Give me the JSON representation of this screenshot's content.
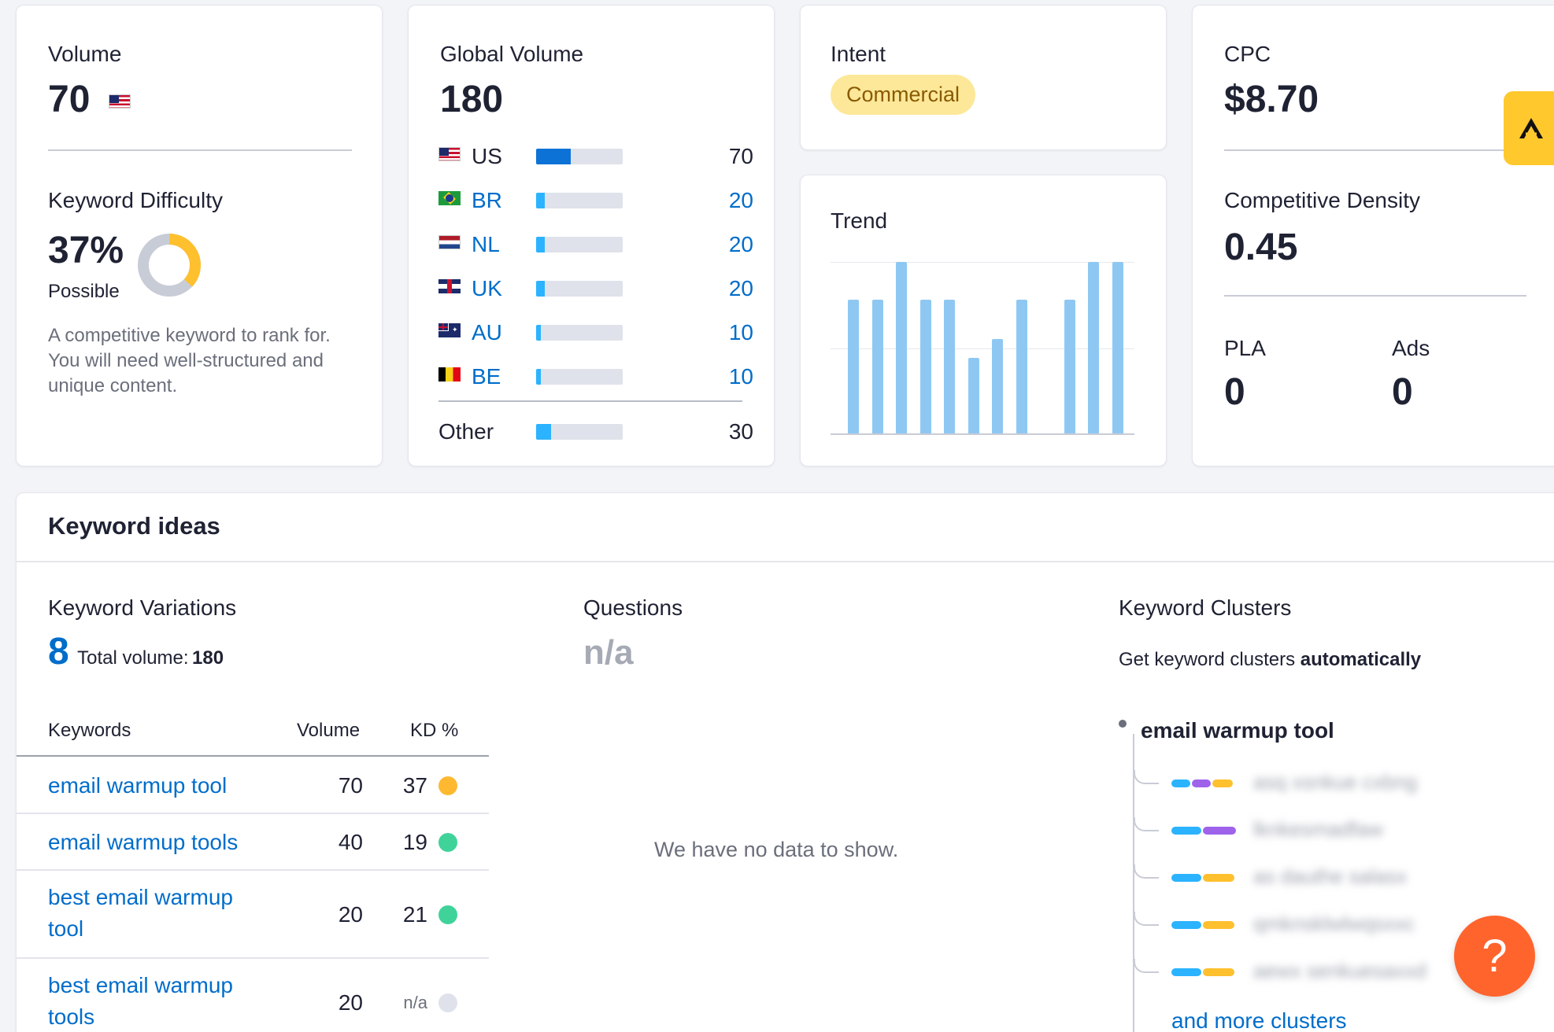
{
  "volume": {
    "label": "Volume",
    "value": "70",
    "kd_label": "Keyword Difficulty",
    "kd_value": "37%",
    "kd_percent": 37,
    "kd_rating": "Possible",
    "kd_description": "A competitive keyword to rank for. You will need well-structured and unique content."
  },
  "global": {
    "label": "Global Volume",
    "value": "180",
    "rows": [
      {
        "code": "US",
        "flag": "flag-us",
        "value": "70",
        "fill": 0.4,
        "link": false,
        "dark": true
      },
      {
        "code": "BR",
        "flag": "flag-br",
        "value": "20",
        "fill": 0.1,
        "link": true
      },
      {
        "code": "NL",
        "flag": "flag-nl",
        "value": "20",
        "fill": 0.1,
        "link": true
      },
      {
        "code": "UK",
        "flag": "flag-uk",
        "value": "20",
        "fill": 0.1,
        "link": true
      },
      {
        "code": "AU",
        "flag": "flag-au",
        "value": "10",
        "fill": 0.05,
        "link": true
      },
      {
        "code": "BE",
        "flag": "flag-be",
        "value": "10",
        "fill": 0.05,
        "link": true
      }
    ],
    "other": {
      "code": "Other",
      "value": "30",
      "fill": 0.17
    }
  },
  "intent": {
    "label": "Intent",
    "value": "Commercial"
  },
  "trend": {
    "label": "Trend",
    "values": [
      0.78,
      0.78,
      1.0,
      0.78,
      0.78,
      0.44,
      0.55,
      0.78,
      0.0,
      0.78,
      1.0,
      1.0
    ]
  },
  "cpc": {
    "label": "CPC",
    "value": "$8.70",
    "cd_label": "Competitive Density",
    "cd_value": "0.45",
    "pla_label": "PLA",
    "pla_value": "0",
    "ads_label": "Ads",
    "ads_value": "0"
  },
  "ideas": {
    "title": "Keyword ideas",
    "variations": {
      "label": "Keyword Variations",
      "count": "8",
      "total_label": "Total volume:",
      "total_value": "180",
      "col_keywords": "Keywords",
      "col_volume": "Volume",
      "col_kd": "KD %",
      "rows": [
        {
          "kw": "email warmup tool",
          "vol": "70",
          "kd": "37",
          "dot": "#ffb930"
        },
        {
          "kw": "email warmup tools",
          "vol": "40",
          "kd": "19",
          "dot": "#3fd39a"
        },
        {
          "kw": "best email warmup tool",
          "vol": "20",
          "kd": "21",
          "dot": "#3fd39a"
        },
        {
          "kw": "best email warmup tools",
          "vol": "20",
          "kd": "n/a",
          "dot": "#dfe2ea"
        }
      ]
    },
    "questions": {
      "label": "Questions",
      "value": "n/a",
      "empty": "We have no data to show."
    },
    "clusters": {
      "label": "Keyword Clusters",
      "subtitle_prefix": "Get keyword clusters ",
      "subtitle_bold": "automatically",
      "root": "email warmup tool",
      "items": [
        "asq xsnkue cxbng",
        "lknkesmadfaw",
        "as dauthe salasx",
        "qmknsklwlwqsxxc",
        "aewx senkuesaxxd"
      ],
      "more": "and more clusters"
    }
  },
  "colors": {
    "accent_blue": "#006dca",
    "bar_blue": "#2bb3ff",
    "trend_bar": "#8ec8f2",
    "help": "#ff642d",
    "semrush_yellow": "#ffc82c"
  }
}
